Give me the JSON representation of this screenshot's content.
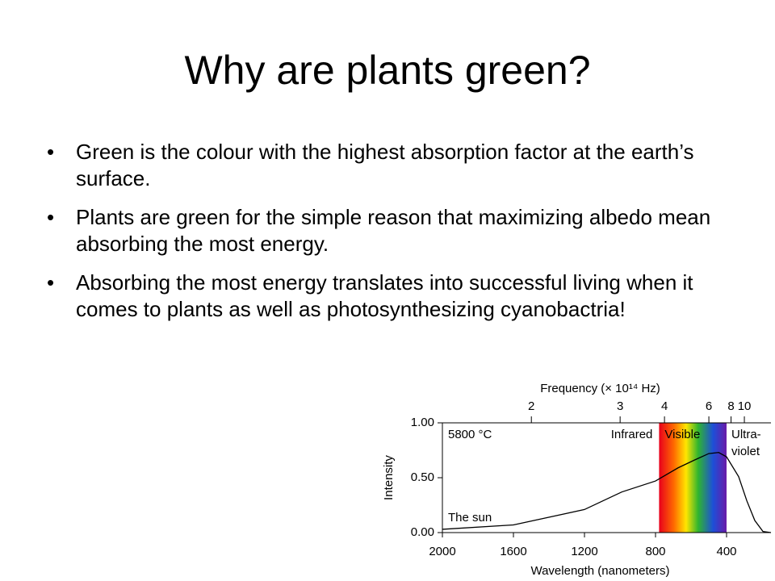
{
  "title": "Why are plants green?",
  "bullets": [
    "Green is the colour with the highest absorption factor at the earth’s surface.",
    "Plants are green for the simple reason that maximizing albedo mean absorbing the most energy.",
    "Absorbing the most energy translates into successful living when it comes to plants as well as photosynthesizing cyanobactria!"
  ],
  "chart_data": {
    "type": "line",
    "x": [
      2000,
      1600,
      1200,
      990,
      800,
      673,
      582,
      500,
      445,
      400,
      332,
      286,
      241,
      195,
      150
    ],
    "series": [
      {
        "name": "The sun",
        "color": "#000000",
        "values": [
          0.03,
          0.07,
          0.21,
          0.37,
          0.47,
          0.59,
          0.66,
          0.72,
          0.73,
          0.69,
          0.51,
          0.29,
          0.11,
          0.01,
          0
        ]
      }
    ],
    "xlim": [
      2000,
      150
    ],
    "xticks": [
      2000,
      1600,
      1200,
      800,
      400
    ],
    "ylim": [
      0,
      1
    ],
    "yticks": [
      {
        "value": 0,
        "label": "0.00"
      },
      {
        "value": 0.5,
        "label": "0.50"
      },
      {
        "value": 1,
        "label": "1.00"
      }
    ],
    "x2ticks": [
      2,
      3,
      4,
      6,
      8,
      10
    ],
    "xlabel": "Wavelength (nanometers)",
    "ylabel": "Intensity",
    "x2label": "Frequency (× 10¹⁴ Hz)",
    "visible_band": [
      780,
      400
    ],
    "annotations": {
      "temperature": "5800 °C",
      "infrared": "Infrared",
      "visible": "Visible",
      "ultraviolet": [
        "Ultra-",
        "violet"
      ]
    }
  }
}
